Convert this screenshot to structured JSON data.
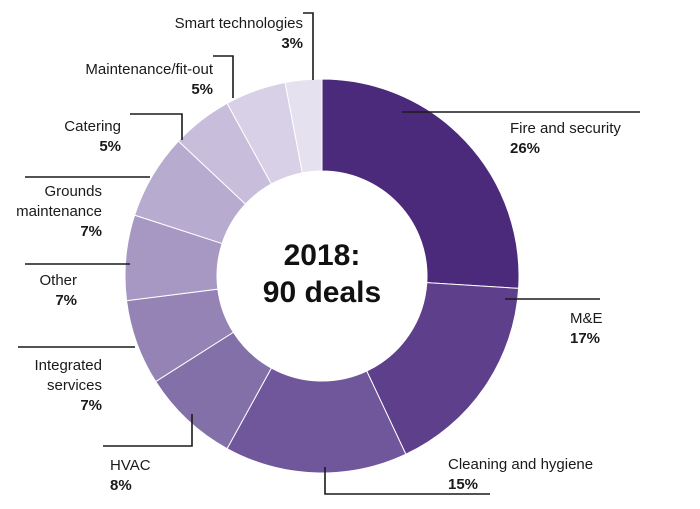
{
  "chart_data": {
    "type": "pie",
    "title": "",
    "center_title_line1": "2018:",
    "center_title_line2": "90 deals",
    "slices": [
      {
        "label": "Fire and security",
        "value": 26,
        "pct_label": "26%",
        "color": "#4b2a7b"
      },
      {
        "label": "M&E",
        "value": 17,
        "pct_label": "17%",
        "color": "#5e3f8c"
      },
      {
        "label": "Cleaning and hygiene",
        "value": 15,
        "pct_label": "15%",
        "color": "#70569b"
      },
      {
        "label": "HVAC",
        "value": 8,
        "pct_label": "8%",
        "color": "#8470a9"
      },
      {
        "label": "Integrated services",
        "label_lines": [
          "Integrated",
          "services"
        ],
        "value": 7,
        "pct_label": "7%",
        "color": "#9583b6"
      },
      {
        "label": "Other",
        "value": 7,
        "pct_label": "7%",
        "color": "#a797c3"
      },
      {
        "label": "Grounds maintenance",
        "label_lines": [
          "Grounds",
          "maintenance"
        ],
        "value": 7,
        "pct_label": "7%",
        "color": "#b8abd0"
      },
      {
        "label": "Catering",
        "value": 5,
        "pct_label": "5%",
        "color": "#c8bedc"
      },
      {
        "label": "Maintenance/fit-out",
        "value": 5,
        "pct_label": "5%",
        "color": "#d8d0e6"
      },
      {
        "label": "Smart technologies",
        "value": 3,
        "pct_label": "3%",
        "color": "#e6e1ef"
      }
    ]
  }
}
